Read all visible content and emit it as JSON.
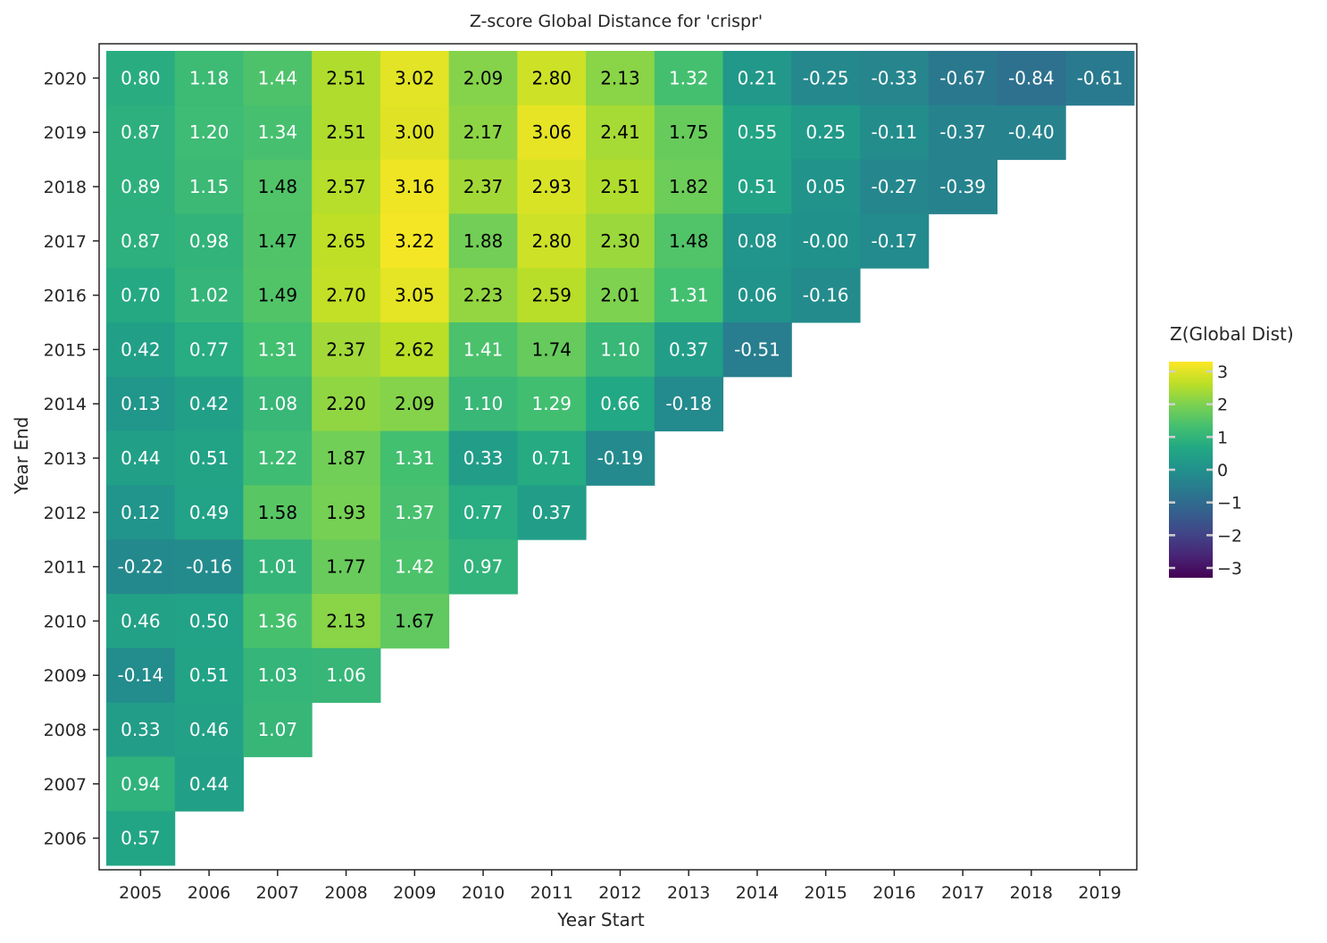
{
  "chart_data": {
    "type": "heatmap",
    "title": "Z-score Global Distance for 'crispr'",
    "xlabel": "Year Start",
    "ylabel": "Year End",
    "x_categories": [
      "2005",
      "2006",
      "2007",
      "2008",
      "2009",
      "2010",
      "2011",
      "2012",
      "2013",
      "2014",
      "2015",
      "2016",
      "2017",
      "2018",
      "2019"
    ],
    "y_categories": [
      "2020",
      "2019",
      "2018",
      "2017",
      "2016",
      "2015",
      "2014",
      "2013",
      "2012",
      "2011",
      "2010",
      "2009",
      "2008",
      "2007",
      "2006"
    ],
    "values": [
      [
        0.8,
        1.18,
        1.44,
        2.51,
        3.02,
        2.09,
        2.8,
        2.13,
        1.32,
        0.21,
        -0.25,
        -0.33,
        -0.67,
        -0.84,
        -0.61
      ],
      [
        0.87,
        1.2,
        1.34,
        2.51,
        3.0,
        2.17,
        3.06,
        2.41,
        1.75,
        0.55,
        0.25,
        -0.11,
        -0.37,
        -0.4,
        null
      ],
      [
        0.89,
        1.15,
        1.48,
        2.57,
        3.16,
        2.37,
        2.93,
        2.51,
        1.82,
        0.51,
        0.05,
        -0.27,
        -0.39,
        null,
        null
      ],
      [
        0.87,
        0.98,
        1.47,
        2.65,
        3.22,
        1.88,
        2.8,
        2.3,
        1.48,
        0.08,
        -0.0,
        -0.17,
        null,
        null,
        null
      ],
      [
        0.7,
        1.02,
        1.49,
        2.7,
        3.05,
        2.23,
        2.59,
        2.01,
        1.31,
        0.06,
        -0.16,
        null,
        null,
        null,
        null
      ],
      [
        0.42,
        0.77,
        1.31,
        2.37,
        2.62,
        1.41,
        1.74,
        1.1,
        0.37,
        -0.51,
        null,
        null,
        null,
        null,
        null
      ],
      [
        0.13,
        0.42,
        1.08,
        2.2,
        2.09,
        1.1,
        1.29,
        0.66,
        -0.18,
        null,
        null,
        null,
        null,
        null,
        null
      ],
      [
        0.44,
        0.51,
        1.22,
        1.87,
        1.31,
        0.33,
        0.71,
        -0.19,
        null,
        null,
        null,
        null,
        null,
        null,
        null
      ],
      [
        0.12,
        0.49,
        1.58,
        1.93,
        1.37,
        0.77,
        0.37,
        null,
        null,
        null,
        null,
        null,
        null,
        null,
        null
      ],
      [
        -0.22,
        -0.16,
        1.01,
        1.77,
        1.42,
        0.97,
        null,
        null,
        null,
        null,
        null,
        null,
        null,
        null,
        null
      ],
      [
        0.46,
        0.5,
        1.36,
        2.13,
        1.67,
        null,
        null,
        null,
        null,
        null,
        null,
        null,
        null,
        null,
        null
      ],
      [
        -0.14,
        0.51,
        1.03,
        1.06,
        null,
        null,
        null,
        null,
        null,
        null,
        null,
        null,
        null,
        null,
        null
      ],
      [
        0.33,
        0.46,
        1.07,
        null,
        null,
        null,
        null,
        null,
        null,
        null,
        null,
        null,
        null,
        null,
        null
      ],
      [
        0.94,
        0.44,
        null,
        null,
        null,
        null,
        null,
        null,
        null,
        null,
        null,
        null,
        null,
        null,
        null
      ],
      [
        0.57,
        null,
        null,
        null,
        null,
        null,
        null,
        null,
        null,
        null,
        null,
        null,
        null,
        null,
        null
      ]
    ],
    "value_labels": [
      [
        "0.80",
        "1.18",
        "1.44",
        "2.51",
        "3.02",
        "2.09",
        "2.80",
        "2.13",
        "1.32",
        "0.21",
        "-0.25",
        "-0.33",
        "-0.67",
        "-0.84",
        "-0.61"
      ],
      [
        "0.87",
        "1.20",
        "1.34",
        "2.51",
        "3.00",
        "2.17",
        "3.06",
        "2.41",
        "1.75",
        "0.55",
        "0.25",
        "-0.11",
        "-0.37",
        "-0.40",
        null
      ],
      [
        "0.89",
        "1.15",
        "1.48",
        "2.57",
        "3.16",
        "2.37",
        "2.93",
        "2.51",
        "1.82",
        "0.51",
        "0.05",
        "-0.27",
        "-0.39",
        null,
        null
      ],
      [
        "0.87",
        "0.98",
        "1.47",
        "2.65",
        "3.22",
        "1.88",
        "2.80",
        "2.30",
        "1.48",
        "0.08",
        "-0.00",
        "-0.17",
        null,
        null,
        null
      ],
      [
        "0.70",
        "1.02",
        "1.49",
        "2.70",
        "3.05",
        "2.23",
        "2.59",
        "2.01",
        "1.31",
        "0.06",
        "-0.16",
        null,
        null,
        null,
        null
      ],
      [
        "0.42",
        "0.77",
        "1.31",
        "2.37",
        "2.62",
        "1.41",
        "1.74",
        "1.10",
        "0.37",
        "-0.51",
        null,
        null,
        null,
        null,
        null
      ],
      [
        "0.13",
        "0.42",
        "1.08",
        "2.20",
        "2.09",
        "1.10",
        "1.29",
        "0.66",
        "-0.18",
        null,
        null,
        null,
        null,
        null,
        null
      ],
      [
        "0.44",
        "0.51",
        "1.22",
        "1.87",
        "1.31",
        "0.33",
        "0.71",
        "-0.19",
        null,
        null,
        null,
        null,
        null,
        null,
        null
      ],
      [
        "0.12",
        "0.49",
        "1.58",
        "1.93",
        "1.37",
        "0.77",
        "0.37",
        null,
        null,
        null,
        null,
        null,
        null,
        null,
        null
      ],
      [
        "-0.22",
        "-0.16",
        "1.01",
        "1.77",
        "1.42",
        "0.97",
        null,
        null,
        null,
        null,
        null,
        null,
        null,
        null,
        null
      ],
      [
        "0.46",
        "0.50",
        "1.36",
        "2.13",
        "1.67",
        null,
        null,
        null,
        null,
        null,
        null,
        null,
        null,
        null,
        null
      ],
      [
        "-0.14",
        "0.51",
        "1.03",
        "1.06",
        null,
        null,
        null,
        null,
        null,
        null,
        null,
        null,
        null,
        null,
        null
      ],
      [
        "0.33",
        "0.46",
        "1.07",
        null,
        null,
        null,
        null,
        null,
        null,
        null,
        null,
        null,
        null,
        null,
        null
      ],
      [
        "0.94",
        "0.44",
        null,
        null,
        null,
        null,
        null,
        null,
        null,
        null,
        null,
        null,
        null,
        null,
        null
      ],
      [
        "0.57",
        null,
        null,
        null,
        null,
        null,
        null,
        null,
        null,
        null,
        null,
        null,
        null,
        null,
        null
      ]
    ],
    "colorbar": {
      "title": "Z(Global Dist)",
      "range": [
        -3.3,
        3.3
      ],
      "ticks": [
        3,
        2,
        1,
        0,
        -1,
        -2,
        -3
      ],
      "tick_labels": [
        "3",
        "2",
        "1",
        "0",
        "−1",
        "−2",
        "−3"
      ],
      "colormap": "viridis"
    },
    "grid": false
  }
}
